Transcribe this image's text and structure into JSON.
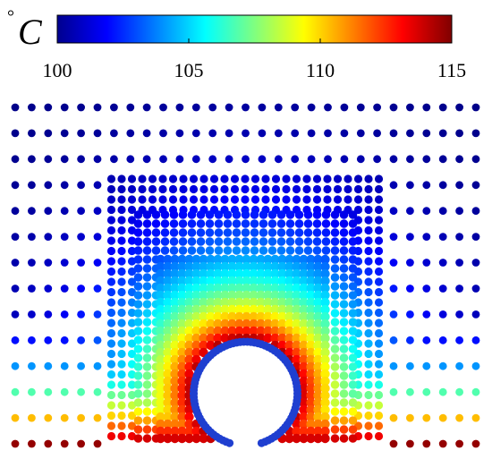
{
  "chart_data": {
    "type": "scatter",
    "title": "",
    "xlabel": "",
    "ylabel": "",
    "colorbar": {
      "unit_degree": "°",
      "unit_letter": "C",
      "colormap": "jet",
      "range": [
        100,
        115
      ],
      "ticks": [
        {
          "value": 100,
          "label": "100"
        },
        {
          "value": 105,
          "label": "105"
        },
        {
          "value": 110,
          "label": "110"
        },
        {
          "value": 115,
          "label": "115"
        }
      ]
    },
    "field": {
      "description_free": true,
      "grid_columns": 29,
      "hole_center": [
        0,
        0
      ],
      "hole_radius": 1,
      "x_range": [
        -4.6,
        4.6
      ],
      "y_range": [
        0,
        7.2
      ],
      "max_value": 115,
      "min_value": 100,
      "hole_rim_color": "#1f3fd0"
    }
  }
}
